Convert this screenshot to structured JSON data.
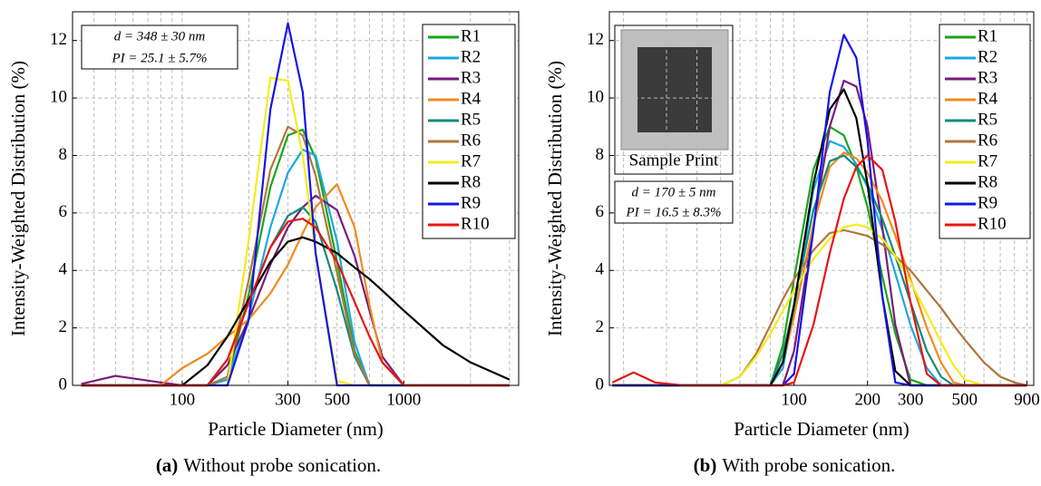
{
  "chart_data": [
    {
      "type": "line",
      "caption_label": "(a)",
      "caption": "Without probe sonication.",
      "xlabel": "Particle Diameter (nm)",
      "ylabel": "Intensity-Weighted Distribution (%)",
      "xscale": "log",
      "grid": true,
      "legend": "upper right",
      "xlim": [
        32,
        3300
      ],
      "ylim": [
        0,
        13
      ],
      "xticks": [
        100,
        300,
        500,
        1000
      ],
      "minor_xticks": [
        40,
        50,
        60,
        70,
        80,
        90,
        200,
        400,
        600,
        700,
        800,
        900,
        2000,
        3000
      ],
      "yticks": [
        0,
        2,
        4,
        6,
        8,
        10,
        12
      ],
      "annotations": [
        "d = 348 ± 30 nm",
        "PI = 25.1 ± 5.7%"
      ],
      "x": [
        35,
        50,
        80,
        100,
        130,
        160,
        200,
        250,
        300,
        350,
        400,
        500,
        600,
        700,
        800,
        1000,
        1500,
        2000,
        3000
      ],
      "series": [
        {
          "name": "R1",
          "color": "#1aa51a",
          "values": [
            0,
            0,
            0,
            0,
            0,
            0.2,
            3.2,
            6.9,
            8.7,
            8.9,
            7.9,
            4.3,
            1.2,
            0,
            0,
            0,
            0,
            0,
            0
          ]
        },
        {
          "name": "R2",
          "color": "#1ba8e0",
          "values": [
            0,
            0,
            0,
            0,
            0,
            0.2,
            2.4,
            5.5,
            7.4,
            8.2,
            8.0,
            5.0,
            1.5,
            0,
            0,
            0,
            0,
            0,
            0
          ]
        },
        {
          "name": "R3",
          "color": "#7b1a7b",
          "values": [
            0.05,
            0.33,
            0.1,
            0,
            0,
            0.7,
            2.3,
            4.2,
            5.5,
            6.2,
            6.6,
            6.1,
            4.5,
            2.6,
            1.0,
            0,
            0,
            0,
            0
          ]
        },
        {
          "name": "R4",
          "color": "#f08a1c",
          "values": [
            0,
            0,
            0,
            0.6,
            1.1,
            1.7,
            2.3,
            3.2,
            4.2,
            5.3,
            6.2,
            7.0,
            5.5,
            2.8,
            0.8,
            0,
            0,
            0,
            0
          ]
        },
        {
          "name": "R5",
          "color": "#138a7a",
          "values": [
            0,
            0,
            0,
            0,
            0,
            0.9,
            2.9,
            4.8,
            5.9,
            6.2,
            5.7,
            3.3,
            1.0,
            0,
            0,
            0,
            0,
            0,
            0
          ]
        },
        {
          "name": "R6",
          "color": "#b0763c",
          "values": [
            0,
            0,
            0,
            0,
            0,
            0.3,
            3.7,
            7.5,
            9.0,
            8.7,
            7.3,
            3.9,
            1.1,
            0,
            0,
            0,
            0,
            0,
            0
          ]
        },
        {
          "name": "R7",
          "color": "#f2ec1c",
          "values": [
            0,
            0,
            0,
            0,
            0,
            0,
            5.1,
            10.7,
            10.6,
            8.0,
            4.6,
            0.15,
            0,
            0,
            0,
            0,
            0,
            0,
            0
          ]
        },
        {
          "name": "R8",
          "color": "#000000",
          "values": [
            0,
            0,
            0,
            0,
            0.7,
            1.7,
            3.0,
            4.3,
            5.0,
            5.15,
            5.0,
            4.6,
            4.1,
            3.7,
            3.3,
            2.6,
            1.4,
            0.8,
            0.2
          ]
        },
        {
          "name": "R9",
          "color": "#1414e6",
          "values": [
            0,
            0,
            0,
            0,
            0,
            0,
            2.3,
            9.6,
            12.6,
            10.2,
            4.6,
            0,
            0,
            0,
            0,
            0,
            0,
            0,
            0
          ]
        },
        {
          "name": "R10",
          "color": "#e61414",
          "values": [
            0,
            0,
            0,
            0,
            0,
            0.9,
            2.9,
            4.8,
            5.7,
            5.8,
            5.5,
            4.3,
            2.9,
            1.7,
            0.8,
            0,
            0,
            0,
            0
          ]
        }
      ]
    },
    {
      "type": "line",
      "caption_label": "(b)",
      "caption": "With probe sonication.",
      "xlabel": "Particle Diameter (nm)",
      "ylabel": "Intensity-Weighted Distribution (%)",
      "xscale": "log",
      "grid": true,
      "legend": "upper right",
      "xlim": [
        17.5,
        960
      ],
      "ylim": [
        0,
        13
      ],
      "xticks": [
        100,
        200,
        300,
        500,
        900
      ],
      "minor_xticks": [
        20,
        30,
        40,
        50,
        60,
        70,
        80,
        90,
        400,
        600,
        700,
        800
      ],
      "yticks": [
        0,
        2,
        4,
        6,
        8,
        10,
        12
      ],
      "inset_label": "Sample Print",
      "annotations": [
        "d = 170 ± 5 nm",
        "PI = 16.5 ± 8.3%"
      ],
      "x": [
        18,
        22,
        27,
        35,
        50,
        60,
        70,
        80,
        90,
        100,
        120,
        140,
        160,
        180,
        200,
        230,
        260,
        300,
        350,
        400,
        450,
        500,
        600,
        700,
        800,
        900
      ],
      "series": [
        {
          "name": "R1",
          "color": "#1aa51a",
          "values": [
            0,
            0,
            0,
            0,
            0,
            0,
            0,
            0,
            1.4,
            3.7,
            7.5,
            9.0,
            8.7,
            7.6,
            6.2,
            3.8,
            1.8,
            0.2,
            0,
            0,
            0,
            0,
            0,
            0,
            0,
            0
          ]
        },
        {
          "name": "R2",
          "color": "#1ba8e0",
          "values": [
            0,
            0,
            0,
            0,
            0,
            0,
            0,
            0,
            0.6,
            2.6,
            6.8,
            8.5,
            8.3,
            7.7,
            6.9,
            5.4,
            3.9,
            2.1,
            0.6,
            0,
            0,
            0,
            0,
            0,
            0,
            0
          ]
        },
        {
          "name": "R3",
          "color": "#7b1a7b",
          "values": [
            0,
            0,
            0,
            0,
            0,
            0,
            0,
            0,
            0,
            1.2,
            5.5,
            9.0,
            10.6,
            10.4,
            9.0,
            5.5,
            2.1,
            0,
            0,
            0,
            0,
            0,
            0,
            0,
            0,
            0
          ]
        },
        {
          "name": "R4",
          "color": "#f08a1c",
          "values": [
            0,
            0,
            0,
            0,
            0,
            0,
            0,
            0,
            0.8,
            2.4,
            5.6,
            7.6,
            8.1,
            7.9,
            7.4,
            6.4,
            5.2,
            3.7,
            2.0,
            0.8,
            0.1,
            0,
            0,
            0,
            0,
            0
          ]
        },
        {
          "name": "R5",
          "color": "#138a7a",
          "values": [
            0,
            0,
            0,
            0,
            0,
            0,
            0,
            0,
            1.1,
            2.8,
            6.1,
            7.8,
            8.0,
            7.6,
            7.0,
            5.8,
            4.5,
            2.9,
            1.2,
            0.3,
            0,
            0,
            0,
            0,
            0,
            0
          ]
        },
        {
          "name": "R6",
          "color": "#b0763c",
          "values": [
            0,
            0,
            0,
            0,
            0,
            0.3,
            1.1,
            2.1,
            3.0,
            3.7,
            4.7,
            5.3,
            5.4,
            5.3,
            5.2,
            4.9,
            4.5,
            4.0,
            3.3,
            2.7,
            2.1,
            1.6,
            0.8,
            0.3,
            0.1,
            0
          ]
        },
        {
          "name": "R7",
          "color": "#f2ec1c",
          "values": [
            0,
            0,
            0,
            0,
            0,
            0.3,
            1.0,
            1.8,
            2.6,
            3.3,
            4.4,
            5.1,
            5.5,
            5.6,
            5.5,
            5.1,
            4.5,
            3.6,
            2.5,
            1.5,
            0.7,
            0.2,
            0,
            0,
            0,
            0
          ]
        },
        {
          "name": "R8",
          "color": "#000000",
          "values": [
            0,
            0,
            0,
            0,
            0,
            0,
            0,
            0,
            0.8,
            2.8,
            7.0,
            9.6,
            10.3,
            9.3,
            7.0,
            3.1,
            0.5,
            0,
            0,
            0,
            0,
            0,
            0,
            0,
            0,
            0
          ]
        },
        {
          "name": "R9",
          "color": "#1414e6",
          "values": [
            0,
            0,
            0,
            0,
            0,
            0,
            0,
            0,
            0,
            0.4,
            5.4,
            10.2,
            12.2,
            11.4,
            8.5,
            3.1,
            0.1,
            0,
            0,
            0,
            0,
            0,
            0,
            0,
            0,
            0
          ]
        },
        {
          "name": "R10",
          "color": "#e61414",
          "values": [
            0.1,
            0.45,
            0.1,
            0,
            0,
            0,
            0,
            0,
            0,
            0.1,
            2.1,
            4.6,
            6.5,
            7.6,
            8.0,
            7.5,
            5.7,
            2.9,
            0.4,
            0,
            0,
            0,
            0,
            0,
            0,
            0
          ]
        }
      ]
    }
  ]
}
